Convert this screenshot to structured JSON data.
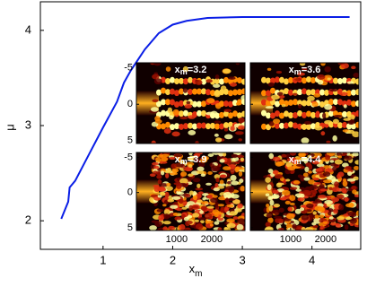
{
  "chart_data": {
    "type": "line",
    "xlabel": {
      "base": "x",
      "sub": "m"
    },
    "ylabel": "μ",
    "series": [
      {
        "color": "#0a1ee6",
        "x": [
          0.4,
          0.5,
          0.52,
          0.6,
          0.8,
          1.0,
          1.2,
          1.3,
          1.4,
          1.6,
          1.8,
          2.0,
          2.2,
          2.5,
          3.0,
          4.54
        ],
        "values": [
          2.02,
          2.2,
          2.35,
          2.42,
          2.7,
          2.98,
          3.25,
          3.45,
          3.58,
          3.8,
          3.97,
          4.06,
          4.1,
          4.13,
          4.14,
          4.14
        ]
      }
    ],
    "xlim": [
      0.1,
      4.7
    ],
    "xticks": [
      1,
      2,
      3,
      4
    ],
    "ylim": [
      1.7,
      4.3
    ],
    "yticks": [
      2,
      3,
      4
    ],
    "insets": [
      {
        "label": {
          "base": "x",
          "sub": "m",
          "rest": "=3.2"
        }
      },
      {
        "label": {
          "base": "x",
          "sub": "m",
          "rest": "=3.6"
        }
      },
      {
        "label": {
          "base": "x",
          "sub": "m",
          "rest": "=3.9"
        }
      },
      {
        "label": {
          "base": "x",
          "sub": "m",
          "rest": "=4.4"
        }
      }
    ],
    "inset_xlim": [
      -150,
      2950
    ],
    "inset_xticks": [
      1000,
      2000
    ],
    "inset_ylim": [
      -5.7,
      5.4
    ],
    "inset_yticks": [
      -5,
      0,
      5
    ]
  }
}
